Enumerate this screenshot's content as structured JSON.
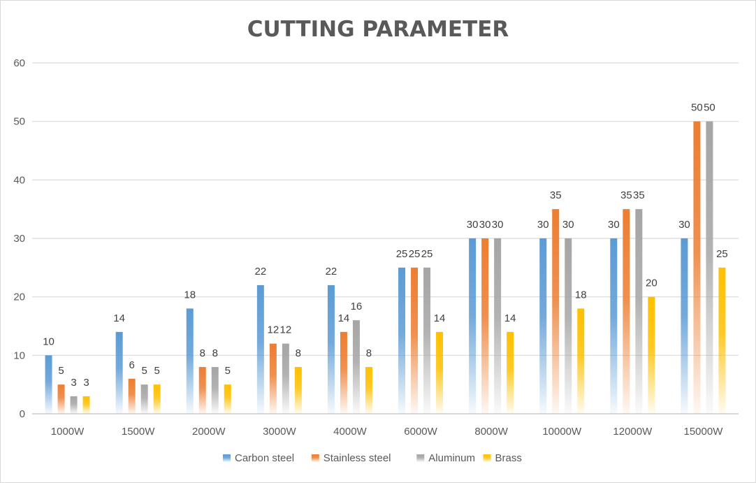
{
  "chart_data": {
    "type": "bar",
    "title": "CUTTING PARAMETER",
    "xlabel": "",
    "ylabel": "",
    "ylim": [
      0,
      60
    ],
    "yticks": [
      0,
      10,
      20,
      30,
      40,
      50,
      60
    ],
    "grid": true,
    "legend_position": "bottom",
    "categories": [
      "1000W",
      "1500W",
      "2000W",
      "3000W",
      "4000W",
      "6000W",
      "8000W",
      "10000W",
      "12000W",
      "15000W"
    ],
    "series": [
      {
        "name": "Carbon steel",
        "color": "#5b9bd5",
        "values": [
          10,
          14,
          18,
          22,
          22,
          25,
          30,
          30,
          30,
          30
        ]
      },
      {
        "name": "Stainless steel",
        "color": "#ed7d31",
        "values": [
          5,
          6,
          8,
          12,
          14,
          25,
          30,
          35,
          35,
          50
        ]
      },
      {
        "name": "Aluminum",
        "color": "#a5a5a5",
        "values": [
          3,
          5,
          8,
          12,
          16,
          25,
          30,
          30,
          35,
          50
        ]
      },
      {
        "name": "Brass",
        "color": "#ffc000",
        "values": [
          3,
          5,
          5,
          8,
          8,
          14,
          14,
          18,
          20,
          25
        ]
      }
    ]
  }
}
